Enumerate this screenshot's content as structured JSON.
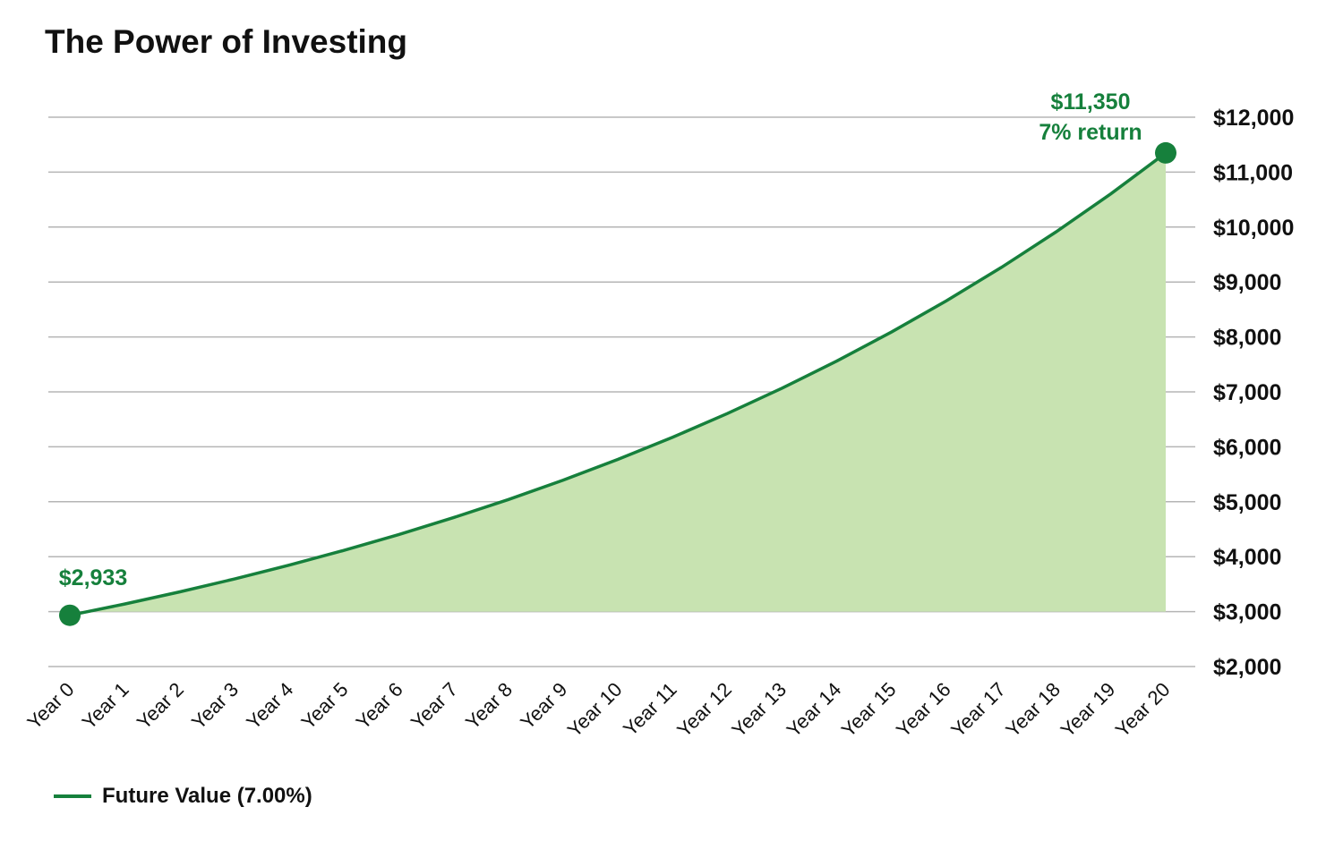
{
  "chart_data": {
    "type": "area",
    "title": "The Power of Investing",
    "xlabel": "",
    "ylabel": "",
    "categories": [
      "Year 0",
      "Year 1",
      "Year 2",
      "Year 3",
      "Year 4",
      "Year 5",
      "Year 6",
      "Year 7",
      "Year 8",
      "Year 9",
      "Year 10",
      "Year 11",
      "Year 12",
      "Year 13",
      "Year 14",
      "Year 15",
      "Year 16",
      "Year 17",
      "Year 18",
      "Year 19",
      "Year 20"
    ],
    "series": [
      {
        "name": "Future Value (7.00%)",
        "values": [
          2933,
          3138,
          3358,
          3593,
          3845,
          4114,
          4402,
          4710,
          5039,
          5392,
          5770,
          6174,
          6606,
          7068,
          7563,
          8092,
          8659,
          9265,
          9913,
          10607,
          11350
        ]
      }
    ],
    "ylim": [
      2000,
      12000
    ],
    "yticks": [
      2000,
      3000,
      4000,
      5000,
      6000,
      7000,
      8000,
      9000,
      10000,
      11000,
      12000
    ],
    "ytick_labels": [
      "$2,000",
      "$3,000",
      "$4,000",
      "$5,000",
      "$6,000",
      "$7,000",
      "$8,000",
      "$9,000",
      "$10,000",
      "$11,000",
      "$12,000"
    ],
    "y_axis_side": "right",
    "grid": "horizontal",
    "legend_position": "bottom-left",
    "annotations": {
      "start": "$2,933",
      "end_value": "$11,350",
      "end_note": "7% return"
    },
    "colors": {
      "line": "#16803c",
      "fill": "#c8e3b1",
      "grid": "#b5b5b5",
      "text": "#111111"
    }
  }
}
